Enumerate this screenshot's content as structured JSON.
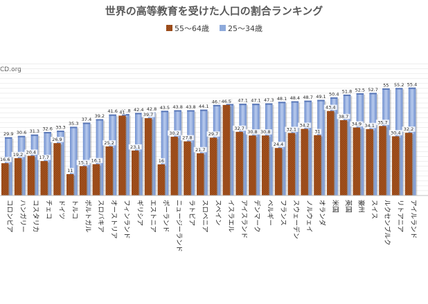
{
  "chart_data": {
    "type": "bar",
    "title": "世界の高等教育を受けた人口の割合ランキング",
    "source_fragment": "CD.org",
    "series": [
      {
        "name": "55～64歳",
        "color": "#9c4a1a",
        "values": [
          16.6,
          19.2,
          20.4,
          17.7,
          26.9,
          11,
          15.1,
          16.1,
          25.2,
          41,
          23.1,
          39.7,
          16,
          30.2,
          27.8,
          21.7,
          29.7,
          46.5,
          32.7,
          30.8,
          30.8,
          24.4,
          32.1,
          34.2,
          31,
          43.4,
          38.7,
          34.9,
          34.1,
          35.7,
          30.4,
          32.2
        ]
      },
      {
        "name": "25～34歳",
        "color": "#8eaadb",
        "values": [
          29.9,
          30.6,
          31.3,
          32.6,
          33.3,
          35.3,
          37.4,
          39.2,
          41.6,
          41.8,
          42.4,
          42.8,
          43.5,
          43.8,
          43.8,
          44.1,
          46.5,
          47,
          47.1,
          47.1,
          47.3,
          48.1,
          48.4,
          48.7,
          49.1,
          50.4,
          51.8,
          52.5,
          52.7,
          55,
          55.2,
          55.4
        ]
      }
    ],
    "categories": [
      "コロンビア",
      "ハンガリー",
      "コスタリカ",
      "チェコ",
      "ドイツ",
      "トルコ",
      "ポルトガル",
      "スロバキア",
      "オーストリア",
      "フィンランド",
      "ギリシア",
      "エストニア",
      "ポーランド",
      "ニュージーランド",
      "ラトビア",
      "スロベニア",
      "スペイン",
      "イスラエル",
      "アイスランド",
      "デンマーク",
      "ベルギー",
      "フランス",
      "スウェーデン",
      "ノルウェイ",
      "オランダ",
      "米国",
      "英国",
      "豪州",
      "スイス",
      "ルクセンブルク",
      "リトアニア",
      "アイルランド"
    ],
    "ylim": [
      0,
      70
    ],
    "grid": true,
    "legend_position": "top"
  }
}
